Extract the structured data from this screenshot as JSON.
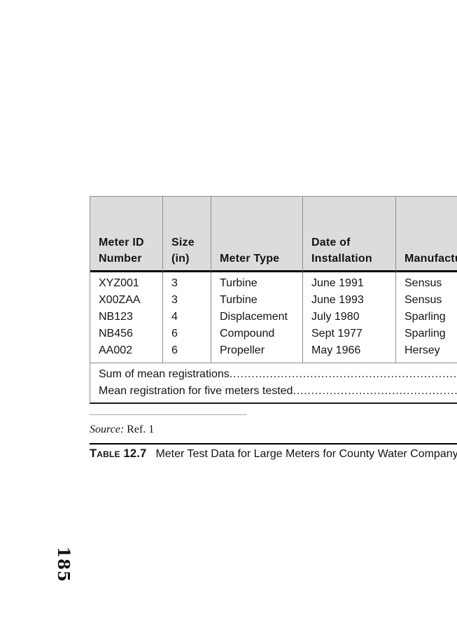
{
  "table": {
    "header": [
      {
        "line1": "Meter ID",
        "line2": "Number"
      },
      {
        "line1": "Size",
        "line2": "(in)"
      },
      {
        "line1": "",
        "line2": "Meter Type"
      },
      {
        "line1": "Date of",
        "line2": "Installation"
      },
      {
        "line1": "",
        "line2": "Manufacturer"
      }
    ],
    "rows": [
      [
        "XYZ001",
        "3",
        "Turbine",
        "June 1991",
        "Sensus"
      ],
      [
        "X00ZAA",
        "3",
        "Turbine",
        "June 1993",
        "Sensus"
      ],
      [
        "NB123",
        "4",
        "Displacement",
        "July 1980",
        "Sparling"
      ],
      [
        "NB456",
        "6",
        "Compound",
        "Sept 1977",
        "Sparling"
      ],
      [
        "AA002",
        "6",
        "Propeller",
        "May 1966",
        "Hersey"
      ]
    ],
    "summary_rows": [
      {
        "label": "Sum of mean registrations"
      },
      {
        "label": "Mean registration for five meters tested"
      }
    ],
    "leader_dots": "........................................................................................................................"
  },
  "source": {
    "label": "Source:",
    "value": "Ref. 1"
  },
  "caption": {
    "label": "Table 12.7",
    "text": "Meter Test Data for Large Meters for County Water Company"
  },
  "folio": "185",
  "colors": {
    "header_bg": "#dcdcdc",
    "grid_line": "#8e8e8e",
    "heavy_rule": "#000000",
    "text": "#141414"
  }
}
